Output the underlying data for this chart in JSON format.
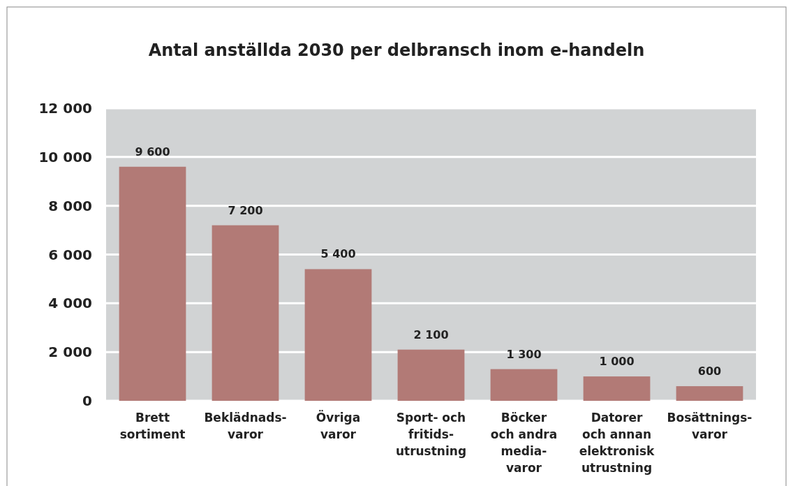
{
  "chart_data": {
    "type": "bar",
    "title": "Antal anställda 2030 per delbransch inom e-handeln",
    "categories": [
      "Brett\nsortiment",
      "Beklädnads-\nvaror",
      "Övriga\nvaror",
      "Sport- och\nfritids-\nutrustning",
      "Böcker\noch andra\nmedia-\nvaror",
      "Datorer\noch annan\nelektronisk\nutrustning",
      "Bosättnings-\nvaror"
    ],
    "values": [
      9600,
      7200,
      5400,
      2100,
      1300,
      1000,
      600
    ],
    "value_labels": [
      "9 600",
      "7 200",
      "5 400",
      "2 100",
      "1 300",
      "1 000",
      "600"
    ],
    "color": "#b27a76",
    "ylim": [
      0,
      12000
    ],
    "yticks": [
      {
        "value": 0,
        "label": "0"
      },
      {
        "value": 2000,
        "label": "2 000"
      },
      {
        "value": 4000,
        "label": "4 000"
      },
      {
        "value": 6000,
        "label": "6 000"
      },
      {
        "value": 8000,
        "label": "8 000"
      },
      {
        "value": 10000,
        "label": "10 000"
      },
      {
        "value": 12000,
        "label": "12 000"
      }
    ],
    "grid": "y"
  }
}
